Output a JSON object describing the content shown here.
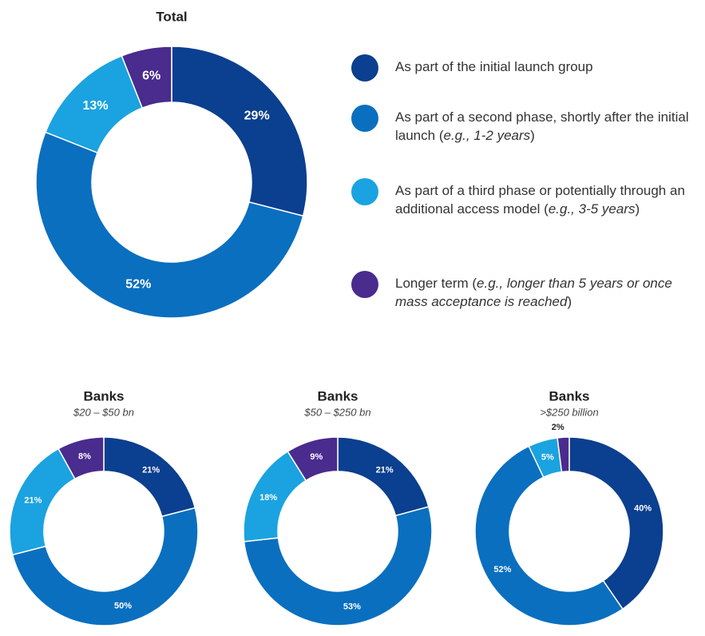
{
  "chart_data": [
    {
      "type": "donut",
      "title": "Total",
      "categories": [
        "As part of the initial launch group",
        "As part of a second phase, shortly after the initial launch (e.g., 1-2 years)",
        "As part of a third phase or potentially through an additional access model (e.g., 3-5 years)",
        "Longer term (e.g., longer than 5 years or once mass acceptance is reached)"
      ],
      "colors": [
        "#0b3f8f",
        "#0a6fbf",
        "#1aa3e0",
        "#4a2b8e"
      ],
      "values": [
        29,
        52,
        13,
        6
      ],
      "value_labels": [
        "29%",
        "52%",
        "13%",
        "6%"
      ]
    },
    {
      "type": "donut",
      "title": "Banks",
      "subtitle": "$20 – $50 bn",
      "values": [
        21,
        50,
        21,
        8
      ],
      "value_labels": [
        "21%",
        "50%",
        "21%",
        "8%"
      ]
    },
    {
      "type": "donut",
      "title": "Banks",
      "subtitle": "$50 – $250 bn",
      "values": [
        21,
        53,
        18,
        9
      ],
      "value_labels": [
        "21%",
        "53%",
        "18%",
        "9%"
      ]
    },
    {
      "type": "donut",
      "title": "Banks",
      "subtitle": ">$250 billion",
      "values": [
        40,
        52,
        5,
        2
      ],
      "value_labels": [
        "40%",
        "52%",
        "5%",
        "2%"
      ]
    }
  ]
}
